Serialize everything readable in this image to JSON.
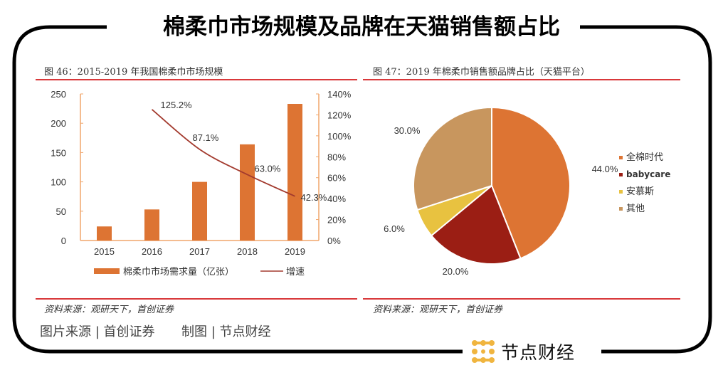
{
  "header": {
    "title": "棉柔巾市场规模及品牌在天猫销售额占比"
  },
  "colors": {
    "bar": "#dd7433",
    "line": "#a33a2e",
    "axis": "#f0a66b",
    "rule": "#d9383a",
    "logo": "#f0b53f"
  },
  "chart_data": [
    {
      "type": "bar",
      "title": "图 46：2015-2019 年我国棉柔巾市场规模",
      "categories": [
        "2015",
        "2016",
        "2017",
        "2018",
        "2019"
      ],
      "series": [
        {
          "name": "棉柔巾市场需求量（亿张）",
          "type": "bar",
          "axis": "left",
          "values": [
            24,
            53,
            100,
            164,
            233
          ]
        },
        {
          "name": "增速",
          "type": "line",
          "axis": "right",
          "values": [
            null,
            125.2,
            87.1,
            63.0,
            42.3
          ],
          "labels": [
            "",
            "125.2%",
            "87.1%",
            "63.0%",
            "42.3%"
          ]
        }
      ],
      "ylim": [
        0,
        250
      ],
      "yticks": [
        "0",
        "50",
        "100",
        "150",
        "200",
        "250"
      ],
      "y2lim": [
        0,
        140
      ],
      "y2ticks": [
        "0%",
        "20%",
        "40%",
        "60%",
        "80%",
        "100%",
        "120%",
        "140%"
      ],
      "xlabel": "",
      "ylabel": "",
      "legend_position": "bottom",
      "grid": false,
      "source": "资料来源：观研天下，首创证券"
    },
    {
      "type": "pie",
      "title": "图 47：2019 年棉柔巾销售额品牌占比（天猫平台）",
      "slices": [
        {
          "name": "全棉时代",
          "value": 44.0,
          "label": "44.0%",
          "color": "#dd7433"
        },
        {
          "name": "babycare",
          "value": 20.0,
          "label": "20.0%",
          "color": "#9b1e14"
        },
        {
          "name": "安慕斯",
          "value": 6.0,
          "label": "6.0%",
          "color": "#e8c240"
        },
        {
          "name": "其他",
          "value": 30.0,
          "label": "30.0%",
          "color": "#c8965e"
        }
      ],
      "legend_position": "right",
      "source": "资料来源：观研天下，首创证券"
    }
  ],
  "footer": {
    "credit_source": "图片来源 | 首创证券",
    "credit_maker": "制图 | 节点财经",
    "logo_text": "节点财经",
    "logo_icon": "dot-grid-logo-icon"
  }
}
